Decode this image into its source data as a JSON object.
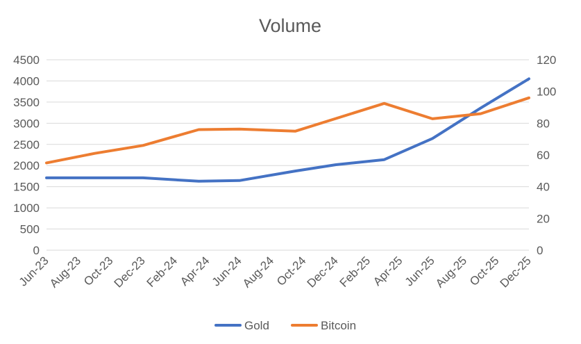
{
  "chart_data": {
    "type": "line",
    "title": "Volume",
    "categories": [
      "Jun-23",
      "Aug-23",
      "Oct-23",
      "Dec-23",
      "Feb-24",
      "Apr-24",
      "Jun-24",
      "Aug-24",
      "Oct-24",
      "Dec-24",
      "Feb-25",
      "Apr-25",
      "Jun-25",
      "Aug-25",
      "Oct-25",
      "Dec-25"
    ],
    "y_left": {
      "ticks": [
        "0",
        "500",
        "1000",
        "1500",
        "2000",
        "2500",
        "3000",
        "3500",
        "4000",
        "4500"
      ],
      "lim": [
        0,
        4500
      ]
    },
    "y_right": {
      "ticks": [
        "0",
        "20",
        "40",
        "60",
        "80",
        "100",
        "120"
      ],
      "lim": [
        0,
        120
      ]
    },
    "grid": true,
    "legend_position": "bottom",
    "series": [
      {
        "name": "Gold",
        "axis": "left",
        "color": "#4472C4",
        "x": [
          "2023-06-01",
          "2023-12-01",
          "2024-03-15",
          "2024-06-01",
          "2024-09-15",
          "2024-12-01",
          "2025-03-01",
          "2025-06-01",
          "2025-09-01",
          "2025-12-01"
        ],
        "y": [
          1710,
          1710,
          1630,
          1645,
          1870,
          2020,
          2140,
          2640,
          3360,
          4050
        ]
      },
      {
        "name": "Bitcoin",
        "axis": "right",
        "color": "#ED7D31",
        "x": [
          "2023-06-01",
          "2023-09-01",
          "2023-12-01",
          "2024-03-15",
          "2024-06-01",
          "2024-09-15",
          "2024-12-01",
          "2025-03-01",
          "2025-06-01",
          "2025-09-01",
          "2025-12-01"
        ],
        "y": [
          55,
          61,
          66,
          76,
          76.3,
          75,
          83,
          92.5,
          82.8,
          86,
          96
        ]
      }
    ]
  }
}
